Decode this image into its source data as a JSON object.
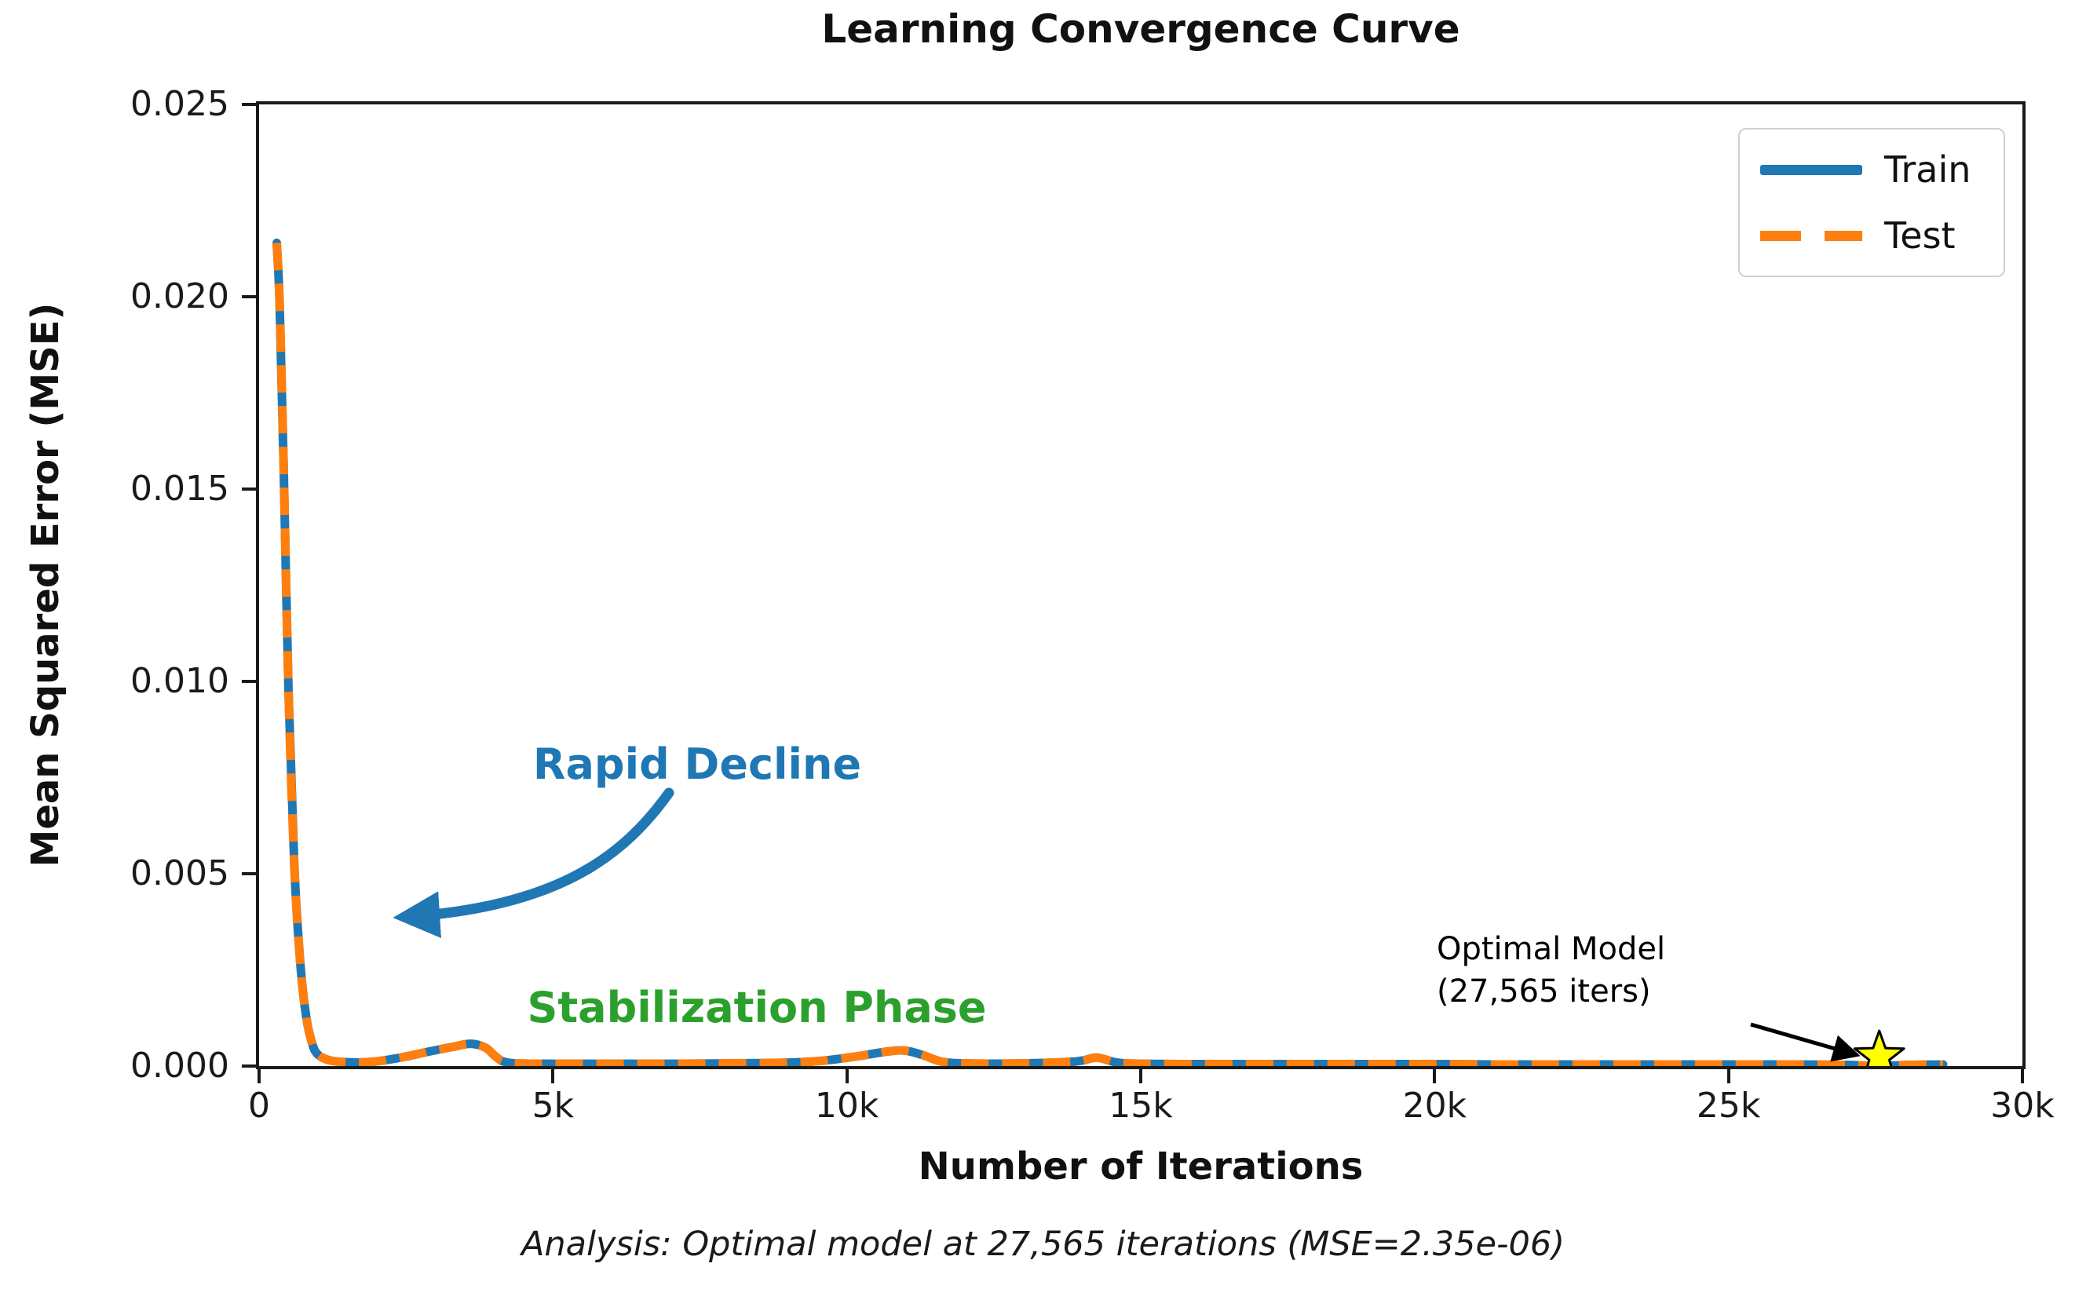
{
  "chart_data": {
    "type": "line",
    "title": "Learning Convergence Curve",
    "xlabel": "Number of Iterations",
    "ylabel": "Mean Squared Error (MSE)",
    "caption": "Analysis: Optimal model at 27,565 iterations (MSE=2.35e-06)",
    "xlim": [
      0,
      30000
    ],
    "ylim": [
      0,
      0.025
    ],
    "grid": false,
    "legend_position": "upper right",
    "x_tick_values": [
      0,
      5000,
      10000,
      15000,
      20000,
      25000,
      30000
    ],
    "x_tick_labels": [
      "0",
      "5k",
      "10k",
      "15k",
      "20k",
      "25k",
      "30k"
    ],
    "y_tick_values": [
      0,
      0.005,
      0.01,
      0.015,
      0.02,
      0.025
    ],
    "y_tick_labels": [
      "0.000",
      "0.005",
      "0.010",
      "0.015",
      "0.020",
      "0.025"
    ],
    "x": [
      300,
      350,
      420,
      500,
      600,
      700,
      800,
      900,
      1000,
      1200,
      1500,
      1800,
      2100,
      2500,
      2900,
      3300,
      3600,
      3850,
      4000,
      4150,
      4400,
      5000,
      6000,
      7000,
      8000,
      9000,
      9600,
      10200,
      10700,
      11000,
      11300,
      11600,
      12000,
      13000,
      13900,
      14250,
      14600,
      15000,
      16000,
      17000,
      18000,
      19000,
      20000,
      21000,
      22000,
      23000,
      24000,
      25000,
      26000,
      27000,
      27565,
      28100,
      28650
    ],
    "series": [
      {
        "name": "Train",
        "color": "#1f77b4",
        "style": "solid",
        "y": [
          0.0214,
          0.0198,
          0.0155,
          0.0098,
          0.0052,
          0.0027,
          0.0013,
          0.0006,
          0.0003,
          0.00015,
          0.0001,
          0.0001,
          0.00014,
          0.00025,
          0.00038,
          0.0005,
          0.00058,
          0.00048,
          0.00028,
          0.00012,
          7e-05,
          6e-05,
          6e-05,
          6e-05,
          7e-05,
          9e-05,
          0.00014,
          0.00026,
          0.00038,
          0.0004,
          0.00028,
          0.00012,
          7e-05,
          7e-05,
          0.00012,
          0.00022,
          9e-05,
          6e-05,
          5e-05,
          5e-05,
          5e-05,
          5e-05,
          5e-05,
          4e-05,
          4e-05,
          4e-05,
          4e-05,
          4e-05,
          4e-05,
          3e-05,
          2.35e-06,
          3e-05,
          4e-05
        ]
      },
      {
        "name": "Test",
        "color": "#ff7f0e",
        "style": "dashed",
        "y": [
          0.0214,
          0.0198,
          0.0155,
          0.0098,
          0.0052,
          0.0027,
          0.0013,
          0.0006,
          0.0003,
          0.00015,
          0.0001,
          0.0001,
          0.00014,
          0.00025,
          0.00038,
          0.0005,
          0.00058,
          0.00048,
          0.00028,
          0.00012,
          7e-05,
          6e-05,
          6e-05,
          6e-05,
          7e-05,
          9e-05,
          0.00014,
          0.00026,
          0.00038,
          0.0004,
          0.00028,
          0.00012,
          7e-05,
          7e-05,
          0.00012,
          0.00022,
          9e-05,
          6e-05,
          5e-05,
          5e-05,
          5e-05,
          5e-05,
          5e-05,
          4e-05,
          4e-05,
          4e-05,
          4e-05,
          4e-05,
          4e-05,
          3e-05,
          2.35e-06,
          3e-05,
          4e-05
        ]
      }
    ],
    "optimal_point": {
      "x": 27565,
      "mse": 2.35e-06,
      "marker": "star",
      "fill": "#ffff00",
      "stroke": "#000000"
    },
    "annotations": {
      "rapid_decline": {
        "text": "Rapid Decline",
        "color": "#1f77b4"
      },
      "stabilization": {
        "text": "Stabilization Phase",
        "color": "#2ca02c"
      },
      "optimal": {
        "text": "Optimal Model\n(27,565 iters)",
        "color": "#000000"
      }
    },
    "colors": {
      "train": "#1f77b4",
      "test": "#ff7f0e",
      "star_fill": "#ffff00",
      "star_stroke": "#000000",
      "axis": "#1a1a1a"
    }
  }
}
